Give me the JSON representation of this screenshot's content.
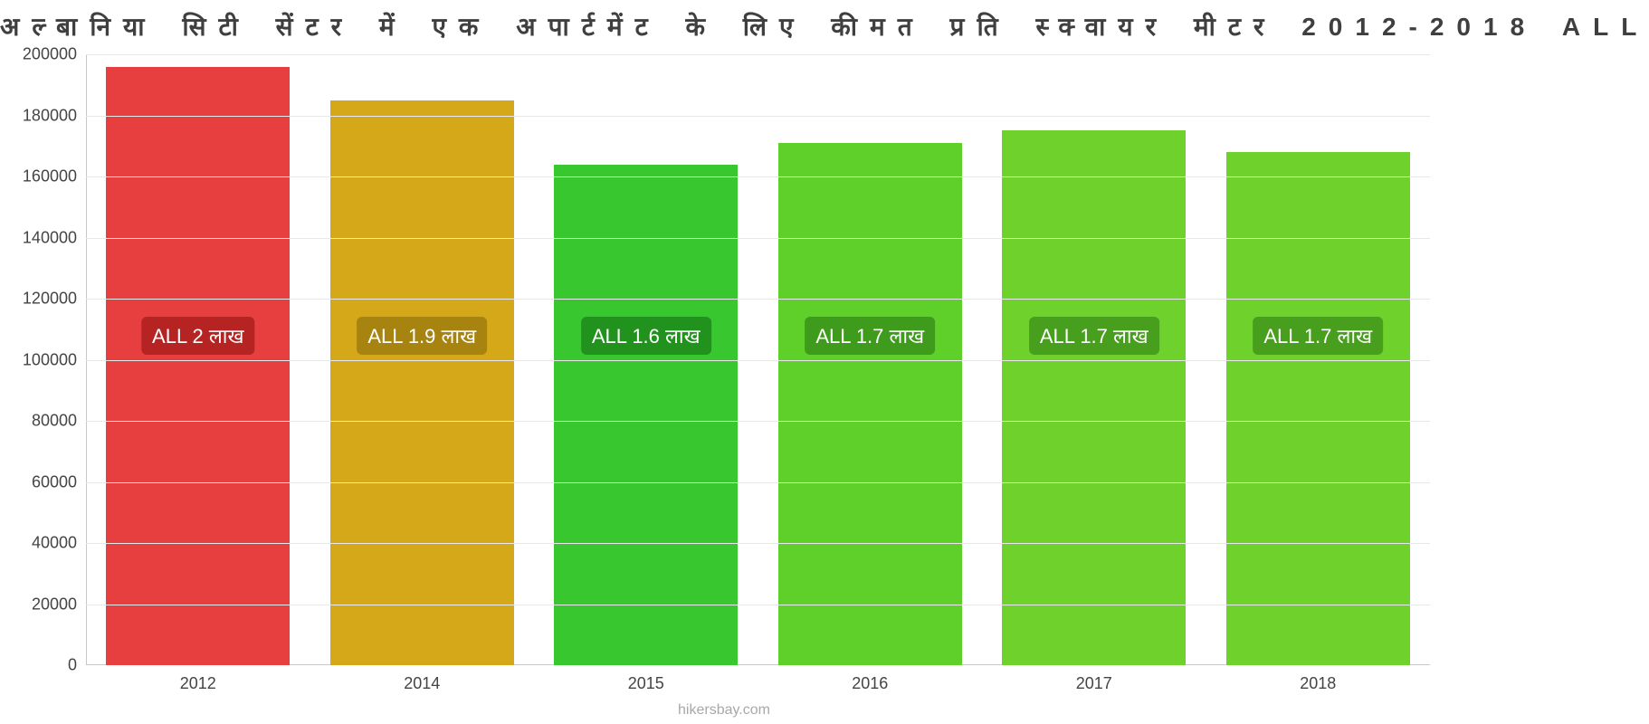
{
  "chart": {
    "type": "bar",
    "title": "अल्बानिया सिटी सेंटर में एक अपार्टमेंट के लिए कीमत प्रति स्क्वायर मीटर 2012-2018 ALL",
    "title_fontsize": 28,
    "title_color": "#3f3f3f",
    "background_color": "#ffffff",
    "grid_color": "#e8e8e8",
    "axis_color": "#c8c8c8",
    "label_color": "#444444",
    "label_fontsize": 18,
    "bar_label_fontsize": 22,
    "bar_label_text_color": "#ffffff",
    "bar_width": 0.82,
    "ylim": [
      0,
      200000
    ],
    "ytick_step": 20000,
    "yticks": [
      0,
      20000,
      40000,
      60000,
      80000,
      100000,
      120000,
      140000,
      160000,
      180000,
      200000
    ],
    "categories": [
      "2012",
      "2014",
      "2015",
      "2016",
      "2017",
      "2018"
    ],
    "values": [
      196000,
      185000,
      164000,
      171000,
      175000,
      168000
    ],
    "bar_colors": [
      "#e73f3f",
      "#d5a81a",
      "#39c72f",
      "#5fcf2a",
      "#6ed12c",
      "#6ed12c"
    ],
    "bar_labels": [
      "ALL 2 लाख",
      "ALL 1.9 लाख",
      "ALL 1.6 लाख",
      "ALL 1.7 लाख",
      "ALL 1.7 लाख",
      "ALL 1.7 लाख"
    ],
    "bar_label_bg": [
      "rgba(155,20,20,0.65)",
      "rgba(130,100,10,0.55)",
      "rgba(20,110,20,0.6)",
      "rgba(40,120,20,0.6)",
      "rgba(45,125,20,0.6)",
      "rgba(45,125,20,0.6)"
    ],
    "bar_label_y_value": 108000,
    "attribution": "hikersbay.com",
    "attribution_color": "#a8a8a8"
  }
}
